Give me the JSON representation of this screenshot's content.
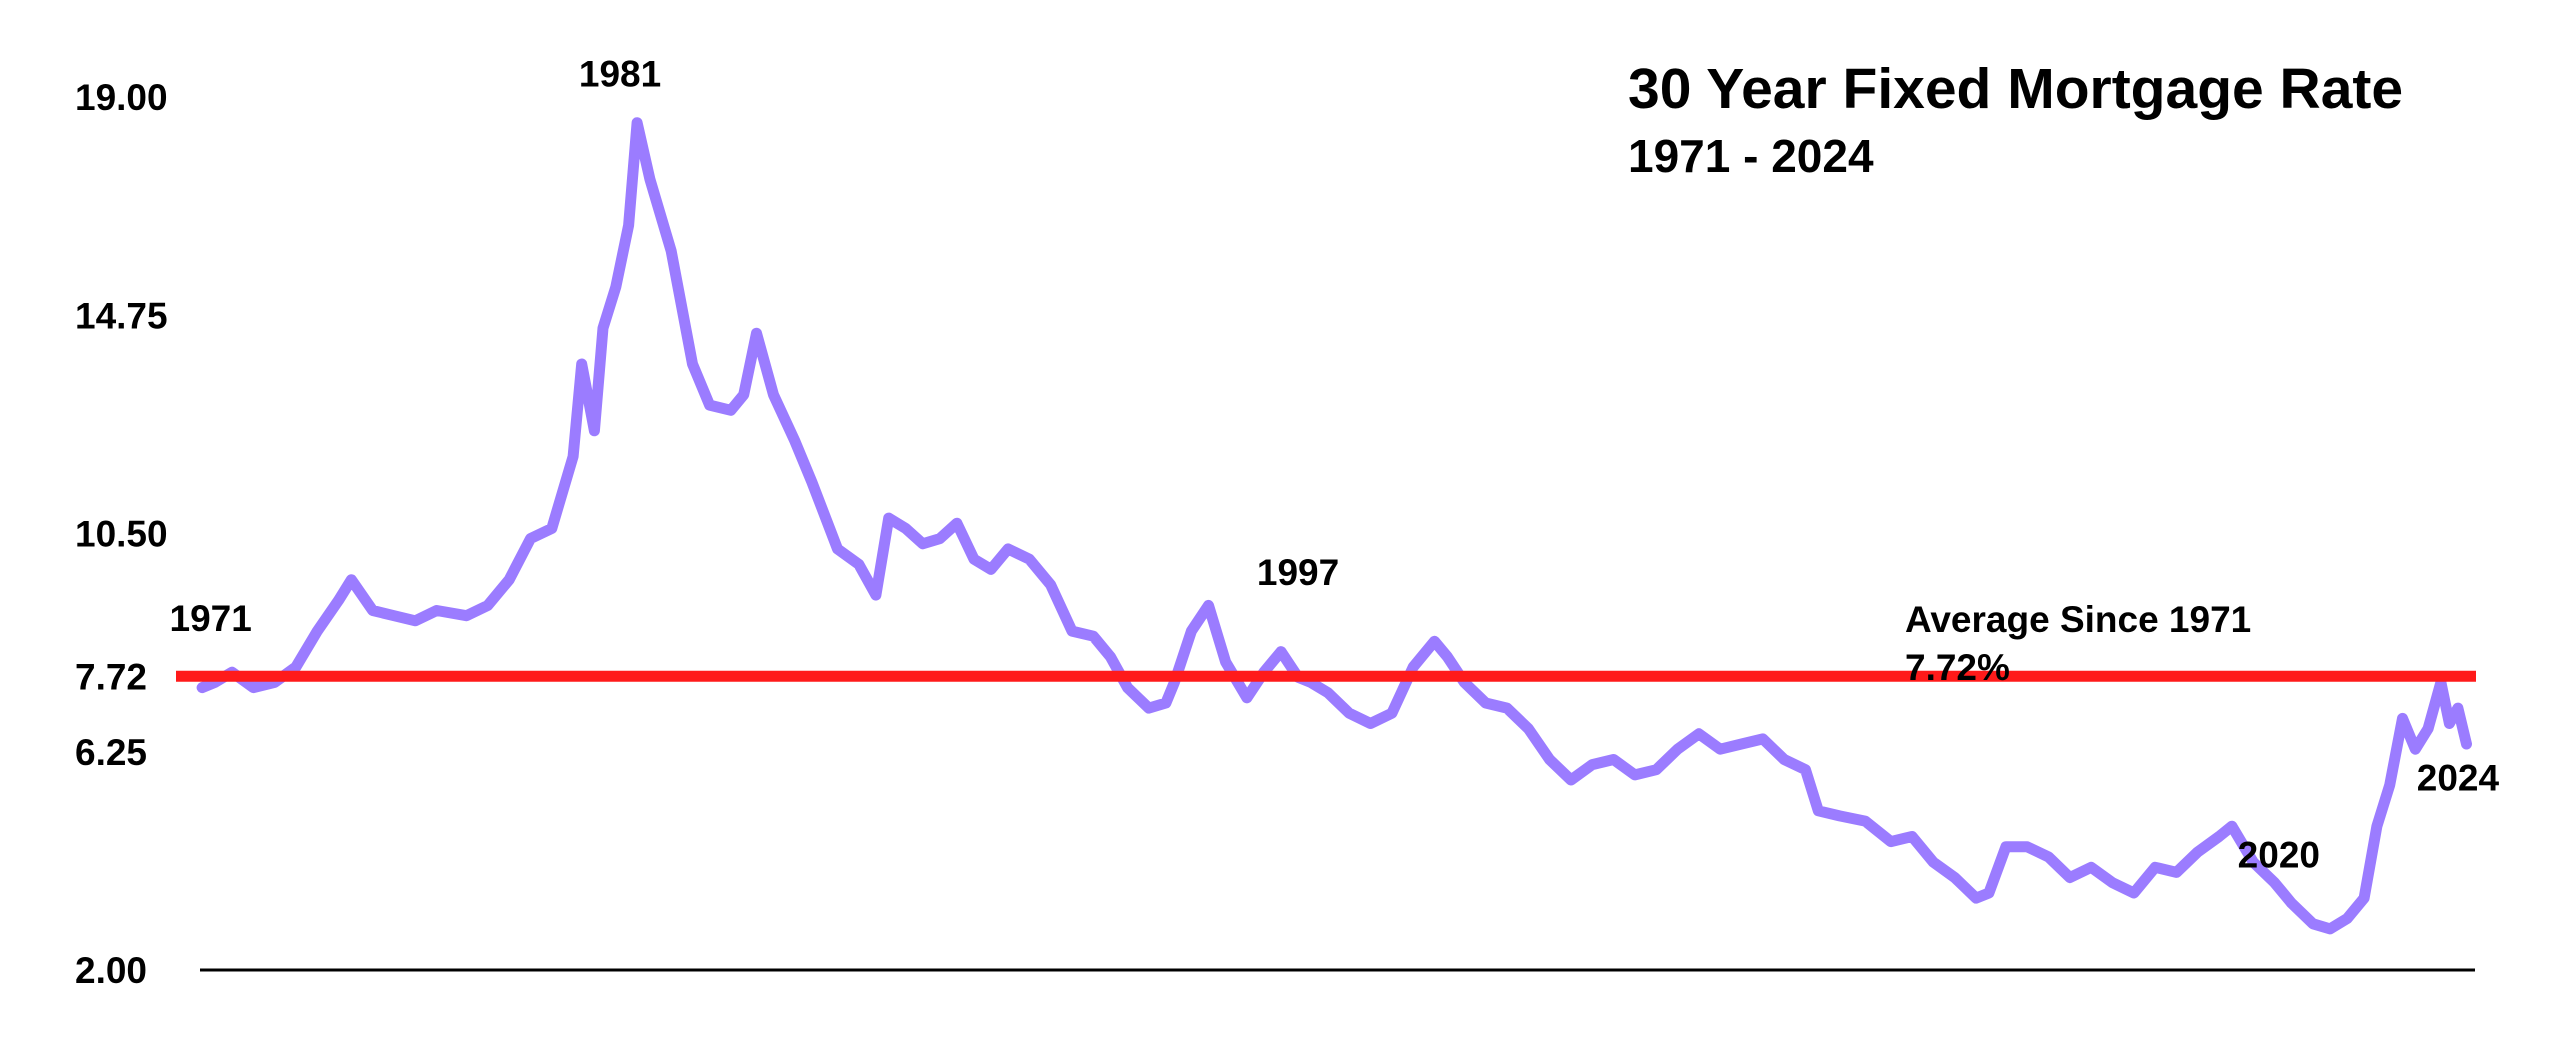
{
  "chart_data": {
    "type": "line",
    "title": "30 Year Fixed Mortgage Rate",
    "subtitle": "1971 - 2024",
    "xlabel": "",
    "ylabel": "",
    "xlim": [
      1971.25,
      2024.6
    ],
    "ylim": [
      2.0,
      19.0
    ],
    "yticks": [
      "19.00",
      "14.75",
      "10.50",
      "7.72",
      "6.25",
      "2.00"
    ],
    "grid": false,
    "series": [
      {
        "color": "#9b7cff",
        "x": [
          1971.3,
          1971.6,
          1972.0,
          1972.5,
          1973.0,
          1973.5,
          1974.0,
          1974.5,
          1974.8,
          1975.3,
          1975.8,
          1976.3,
          1976.8,
          1977.5,
          1978.0,
          1978.5,
          1979.0,
          1979.5,
          1980.0,
          1980.2,
          1980.5,
          1980.7,
          1981.0,
          1981.3,
          1981.5,
          1981.8,
          1982.3,
          1982.8,
          1983.2,
          1983.7,
          1984.0,
          1984.3,
          1984.7,
          1985.2,
          1985.6,
          1986.2,
          1986.7,
          1987.1,
          1987.4,
          1987.8,
          1988.2,
          1988.6,
          1989.0,
          1989.4,
          1989.8,
          1990.2,
          1990.7,
          1991.2,
          1991.7,
          1992.2,
          1992.6,
          1993.0,
          1993.5,
          1993.9,
          1994.1,
          1994.5,
          1994.9,
          1995.3,
          1995.8,
          1996.2,
          1996.6,
          1997.0,
          1997.3,
          1997.7,
          1998.2,
          1998.7,
          1999.2,
          1999.7,
          2000.2,
          2000.5,
          2000.9,
          2001.4,
          2001.9,
          2002.4,
          2002.9,
          2003.4,
          2003.9,
          2004.4,
          2004.9,
          2005.4,
          2005.9,
          2006.4,
          2006.9,
          2007.4,
          2007.9,
          2008.4,
          2008.9,
          2009.2,
          2009.7,
          2010.3,
          2010.9,
          2011.4,
          2011.9,
          2012.4,
          2012.9,
          2013.2,
          2013.6,
          2014.1,
          2014.6,
          2015.1,
          2015.6,
          2016.1,
          2016.6,
          2017.1,
          2017.6,
          2018.1,
          2018.6,
          2018.9,
          2019.4,
          2019.9,
          2020.3,
          2020.8,
          2021.2,
          2021.6,
          2022.0,
          2022.3,
          2022.6,
          2022.9,
          2023.2,
          2023.5,
          2023.8,
          2024.0,
          2024.2,
          2024.4
        ],
        "y": [
          7.5,
          7.6,
          7.8,
          7.5,
          7.6,
          7.9,
          8.6,
          9.2,
          9.6,
          9.0,
          8.9,
          8.8,
          9.0,
          8.9,
          9.1,
          9.6,
          10.4,
          10.6,
          12.0,
          13.8,
          12.5,
          14.5,
          15.3,
          16.5,
          18.5,
          17.4,
          16.0,
          13.8,
          13.0,
          12.9,
          13.2,
          14.4,
          13.2,
          12.3,
          11.5,
          10.2,
          9.9,
          9.3,
          10.8,
          10.6,
          10.3,
          10.4,
          10.7,
          10.0,
          9.8,
          10.2,
          10.0,
          9.5,
          8.6,
          8.5,
          8.1,
          7.5,
          7.1,
          7.2,
          7.6,
          8.6,
          9.1,
          8.0,
          7.3,
          7.8,
          8.2,
          7.7,
          7.6,
          7.4,
          7.0,
          6.8,
          7.0,
          7.9,
          8.4,
          8.1,
          7.6,
          7.2,
          7.1,
          6.7,
          6.1,
          5.7,
          6.0,
          6.1,
          5.8,
          5.9,
          6.3,
          6.6,
          6.3,
          6.4,
          6.5,
          6.1,
          5.9,
          5.1,
          5.0,
          4.9,
          4.5,
          4.6,
          4.1,
          3.8,
          3.4,
          3.5,
          4.4,
          4.4,
          4.2,
          3.8,
          4.0,
          3.7,
          3.5,
          4.0,
          3.9,
          4.3,
          4.6,
          4.8,
          4.1,
          3.7,
          3.3,
          2.9,
          2.8,
          3.0,
          3.4,
          4.8,
          5.6,
          6.9,
          6.3,
          6.7,
          7.6,
          6.8,
          7.1,
          6.4
        ]
      }
    ],
    "reference_line": {
      "value": 7.72,
      "color": "#ff1a1a",
      "label": "Average Since 1971",
      "value_label": "7.72%"
    },
    "annotations": [
      {
        "text": "1971",
        "x": 1971.5,
        "y": 8.6
      },
      {
        "text": "1981",
        "x": 1981.1,
        "y": 19.2
      },
      {
        "text": "1997",
        "x": 1997.0,
        "y": 9.5
      },
      {
        "text": "2020",
        "x": 2020.0,
        "y": 4.0
      },
      {
        "text": "2024",
        "x": 2024.2,
        "y": 5.5
      }
    ]
  }
}
